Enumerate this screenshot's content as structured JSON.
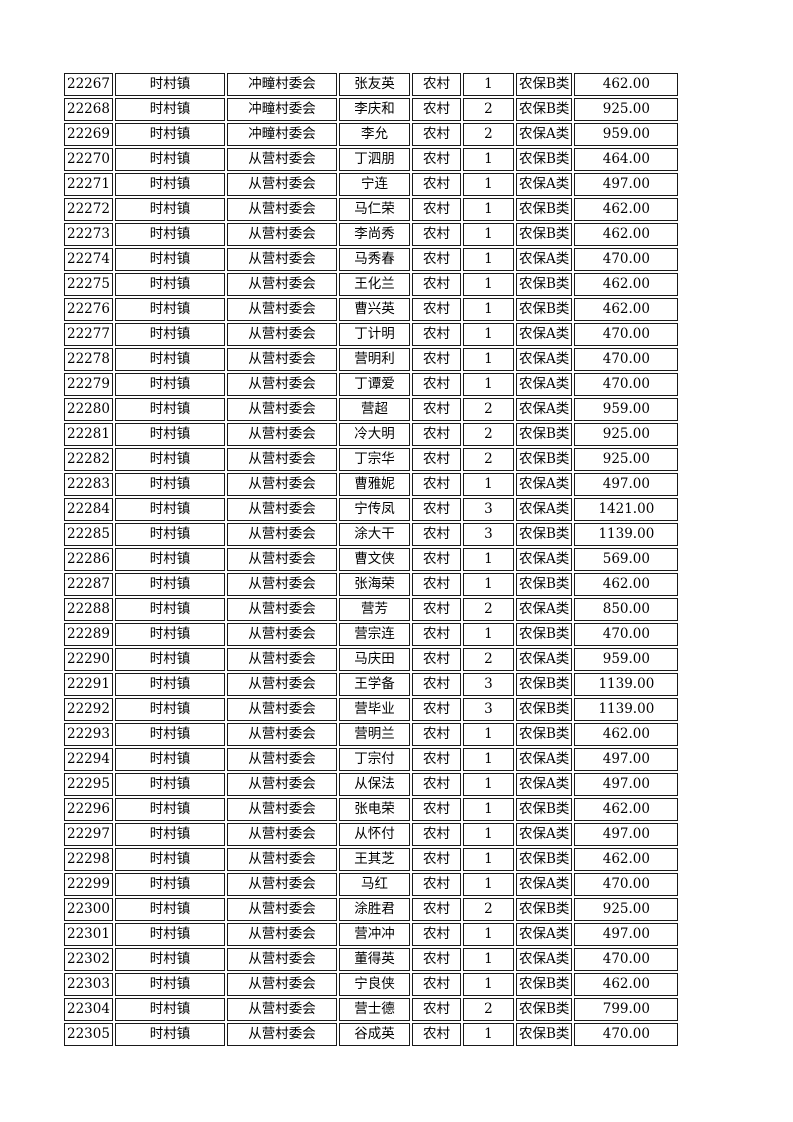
{
  "table": {
    "rows": [
      [
        "22267",
        "时村镇",
        "冲疃村委会",
        "张友英",
        "农村",
        "1",
        "农保B类",
        "462.00"
      ],
      [
        "22268",
        "时村镇",
        "冲疃村委会",
        "李庆和",
        "农村",
        "2",
        "农保B类",
        "925.00"
      ],
      [
        "22269",
        "时村镇",
        "冲疃村委会",
        "李允",
        "农村",
        "2",
        "农保A类",
        "959.00"
      ],
      [
        "22270",
        "时村镇",
        "从营村委会",
        "丁泗朋",
        "农村",
        "1",
        "农保B类",
        "464.00"
      ],
      [
        "22271",
        "时村镇",
        "从营村委会",
        "宁连",
        "农村",
        "1",
        "农保A类",
        "497.00"
      ],
      [
        "22272",
        "时村镇",
        "从营村委会",
        "马仁荣",
        "农村",
        "1",
        "农保B类",
        "462.00"
      ],
      [
        "22273",
        "时村镇",
        "从营村委会",
        "李尚秀",
        "农村",
        "1",
        "农保B类",
        "462.00"
      ],
      [
        "22274",
        "时村镇",
        "从营村委会",
        "马秀春",
        "农村",
        "1",
        "农保A类",
        "470.00"
      ],
      [
        "22275",
        "时村镇",
        "从营村委会",
        "王化兰",
        "农村",
        "1",
        "农保B类",
        "462.00"
      ],
      [
        "22276",
        "时村镇",
        "从营村委会",
        "曹兴英",
        "农村",
        "1",
        "农保B类",
        "462.00"
      ],
      [
        "22277",
        "时村镇",
        "从营村委会",
        "丁计明",
        "农村",
        "1",
        "农保A类",
        "470.00"
      ],
      [
        "22278",
        "时村镇",
        "从营村委会",
        "营明利",
        "农村",
        "1",
        "农保A类",
        "470.00"
      ],
      [
        "22279",
        "时村镇",
        "从营村委会",
        "丁谭爱",
        "农村",
        "1",
        "农保A类",
        "470.00"
      ],
      [
        "22280",
        "时村镇",
        "从营村委会",
        "营超",
        "农村",
        "2",
        "农保A类",
        "959.00"
      ],
      [
        "22281",
        "时村镇",
        "从营村委会",
        "冷大明",
        "农村",
        "2",
        "农保B类",
        "925.00"
      ],
      [
        "22282",
        "时村镇",
        "从营村委会",
        "丁宗华",
        "农村",
        "2",
        "农保B类",
        "925.00"
      ],
      [
        "22283",
        "时村镇",
        "从营村委会",
        "曹雅妮",
        "农村",
        "1",
        "农保A类",
        "497.00"
      ],
      [
        "22284",
        "时村镇",
        "从营村委会",
        "宁传凤",
        "农村",
        "3",
        "农保A类",
        "1421.00"
      ],
      [
        "22285",
        "时村镇",
        "从营村委会",
        "涂大干",
        "农村",
        "3",
        "农保B类",
        "1139.00"
      ],
      [
        "22286",
        "时村镇",
        "从营村委会",
        "曹文侠",
        "农村",
        "1",
        "农保A类",
        "569.00"
      ],
      [
        "22287",
        "时村镇",
        "从营村委会",
        "张海荣",
        "农村",
        "1",
        "农保B类",
        "462.00"
      ],
      [
        "22288",
        "时村镇",
        "从营村委会",
        "营芳",
        "农村",
        "2",
        "农保A类",
        "850.00"
      ],
      [
        "22289",
        "时村镇",
        "从营村委会",
        "营宗连",
        "农村",
        "1",
        "农保B类",
        "470.00"
      ],
      [
        "22290",
        "时村镇",
        "从营村委会",
        "马庆田",
        "农村",
        "2",
        "农保A类",
        "959.00"
      ],
      [
        "22291",
        "时村镇",
        "从营村委会",
        "王学备",
        "农村",
        "3",
        "农保B类",
        "1139.00"
      ],
      [
        "22292",
        "时村镇",
        "从营村委会",
        "营毕业",
        "农村",
        "3",
        "农保B类",
        "1139.00"
      ],
      [
        "22293",
        "时村镇",
        "从营村委会",
        "营明兰",
        "农村",
        "1",
        "农保B类",
        "462.00"
      ],
      [
        "22294",
        "时村镇",
        "从营村委会",
        "丁宗付",
        "农村",
        "1",
        "农保A类",
        "497.00"
      ],
      [
        "22295",
        "时村镇",
        "从营村委会",
        "从保法",
        "农村",
        "1",
        "农保A类",
        "497.00"
      ],
      [
        "22296",
        "时村镇",
        "从营村委会",
        "张电荣",
        "农村",
        "1",
        "农保B类",
        "462.00"
      ],
      [
        "22297",
        "时村镇",
        "从营村委会",
        "从怀付",
        "农村",
        "1",
        "农保A类",
        "497.00"
      ],
      [
        "22298",
        "时村镇",
        "从营村委会",
        "王其芝",
        "农村",
        "1",
        "农保B类",
        "462.00"
      ],
      [
        "22299",
        "时村镇",
        "从营村委会",
        "马红",
        "农村",
        "1",
        "农保A类",
        "470.00"
      ],
      [
        "22300",
        "时村镇",
        "从营村委会",
        "涂胜君",
        "农村",
        "2",
        "农保B类",
        "925.00"
      ],
      [
        "22301",
        "时村镇",
        "从营村委会",
        "营冲冲",
        "农村",
        "1",
        "农保A类",
        "497.00"
      ],
      [
        "22302",
        "时村镇",
        "从营村委会",
        "董得英",
        "农村",
        "1",
        "农保A类",
        "470.00"
      ],
      [
        "22303",
        "时村镇",
        "从营村委会",
        "宁良侠",
        "农村",
        "1",
        "农保B类",
        "462.00"
      ],
      [
        "22304",
        "时村镇",
        "从营村委会",
        "营士德",
        "农村",
        "2",
        "农保B类",
        "799.00"
      ],
      [
        "22305",
        "时村镇",
        "从营村委会",
        "谷成英",
        "农村",
        "1",
        "农保B类",
        "470.00"
      ]
    ]
  }
}
